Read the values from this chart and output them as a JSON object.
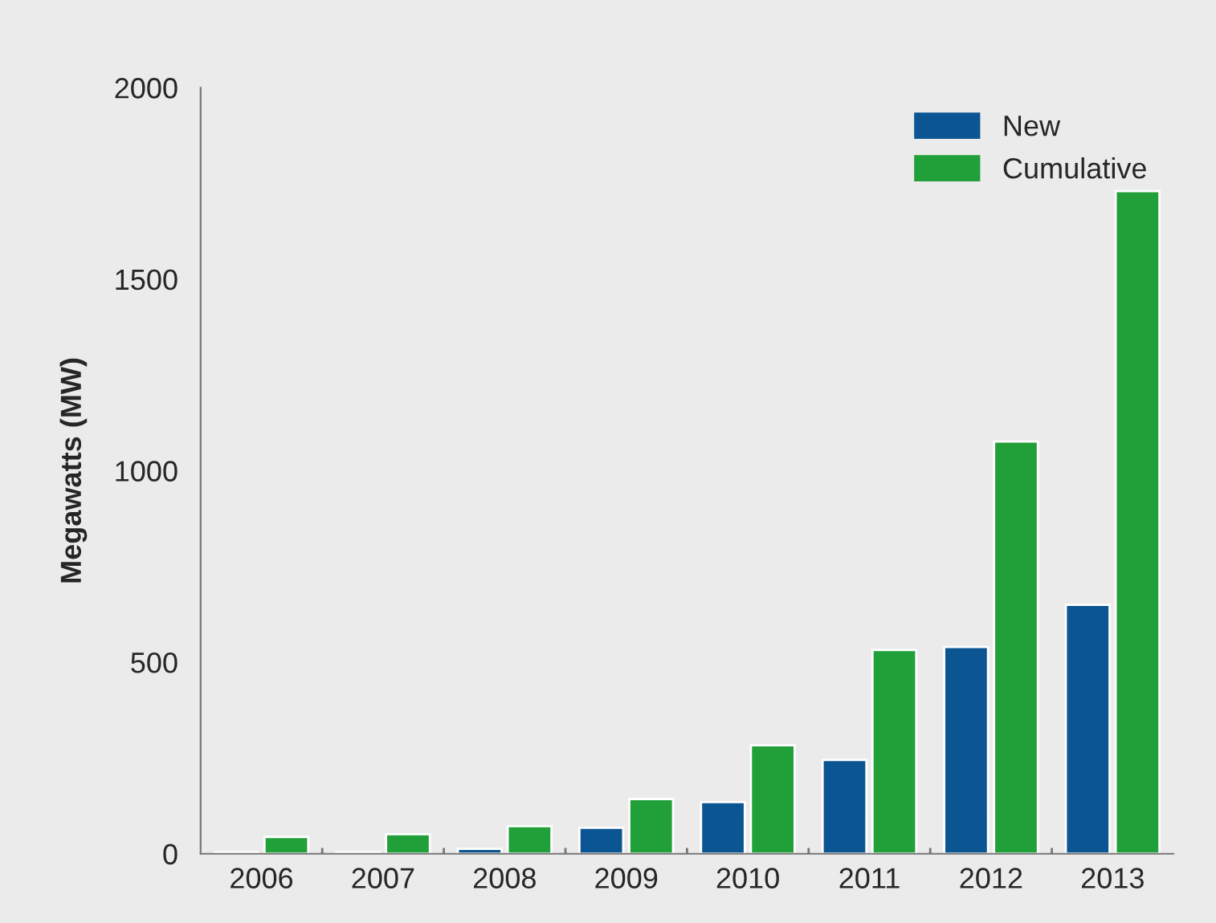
{
  "chart_data": {
    "type": "bar",
    "ylabel": "Megawatts (MW)",
    "categories": [
      "2006",
      "2007",
      "2008",
      "2009",
      "2010",
      "2011",
      "2012",
      "2013"
    ],
    "series": [
      {
        "name": "New",
        "color": "#0b5592",
        "values": [
          4,
          4,
          13,
          68,
          135,
          245,
          540,
          650
        ]
      },
      {
        "name": "Cumulative",
        "color": "#21a03a",
        "values": [
          44,
          51,
          72,
          143,
          283,
          532,
          1076,
          1730
        ]
      }
    ],
    "ylim": [
      0,
      2000
    ],
    "yticks": [
      0,
      500,
      1000,
      1500,
      2000
    ],
    "grid": false,
    "legend": "top right"
  }
}
